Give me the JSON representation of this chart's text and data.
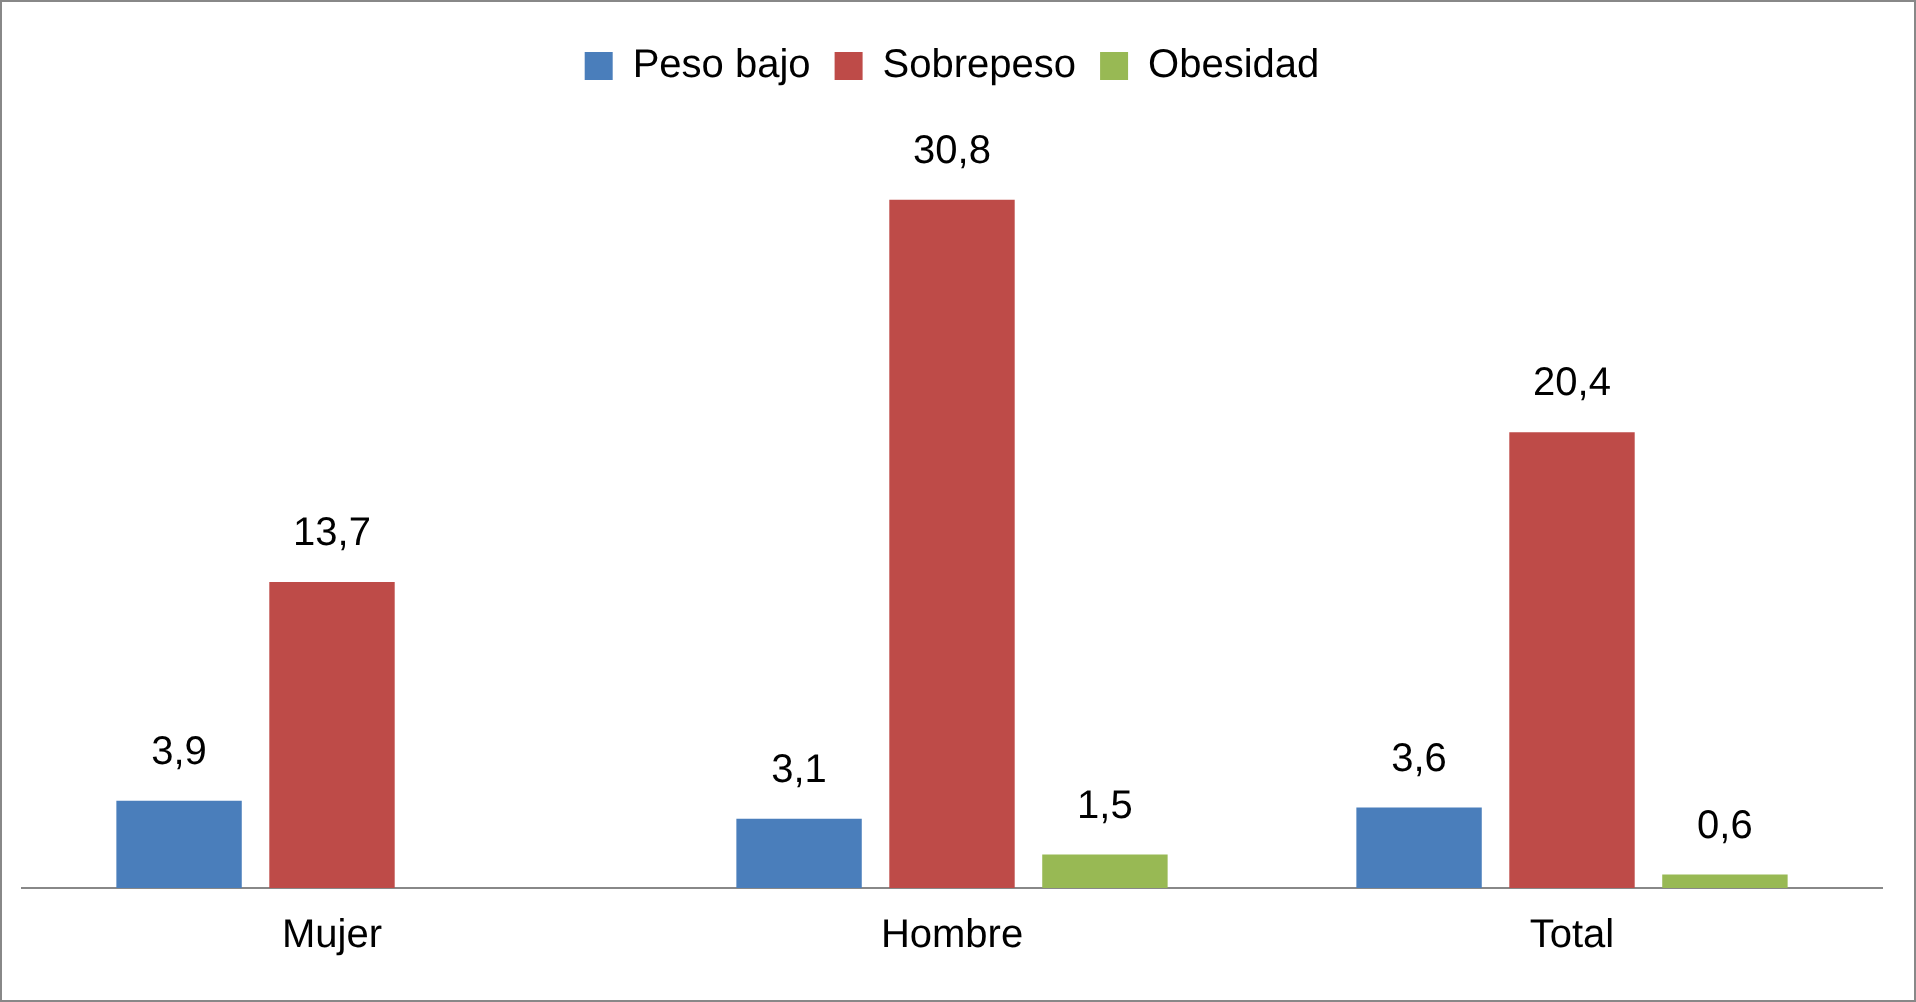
{
  "chart_data": {
    "type": "bar",
    "categories": [
      "Mujer",
      "Hombre",
      "Total"
    ],
    "series": [
      {
        "name": "Peso bajo",
        "color": "#4a7ebb",
        "values": [
          3.9,
          3.1,
          3.6
        ],
        "value_labels": [
          "3,9",
          "3,1",
          "3,6"
        ]
      },
      {
        "name": "Sobrepeso",
        "color": "#be4b48",
        "values": [
          13.7,
          30.8,
          20.4
        ],
        "value_labels": [
          "13,7",
          "30,8",
          "20,4"
        ]
      },
      {
        "name": "Obesidad",
        "color": "#98b954",
        "values": [
          null,
          1.5,
          0.6
        ],
        "value_labels": [
          null,
          "1,5",
          "0,6"
        ]
      }
    ],
    "legend": "top",
    "tick_labels": "x",
    "grid": false
  }
}
